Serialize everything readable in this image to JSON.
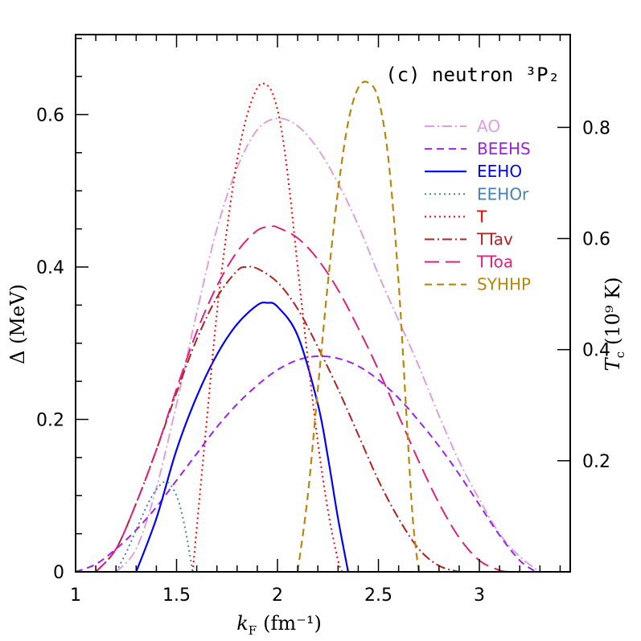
{
  "chart_data": {
    "type": "line",
    "title": "(c) neutron ³P₂",
    "xlabel": {
      "symbol": "k",
      "subscript": "F",
      "unit": "(fm⁻¹)"
    },
    "ylabel": "Δ (MeV)",
    "ylabel_right": {
      "symbol": "T",
      "subscript": "c",
      "unit": "(10⁹ K)"
    },
    "xlim": [
      1,
      3.45
    ],
    "ylim": [
      0,
      0.705
    ],
    "xticks": [
      {
        "value": 1,
        "label": "1"
      },
      {
        "value": 1.5,
        "label": "1.5"
      },
      {
        "value": 2,
        "label": "2"
      },
      {
        "value": 2.5,
        "label": "2.5"
      },
      {
        "value": 3,
        "label": "3"
      }
    ],
    "yticks": [
      {
        "value": 0,
        "label": "0"
      },
      {
        "value": 0.2,
        "label": "0.2"
      },
      {
        "value": 0.4,
        "label": "0.4"
      },
      {
        "value": 0.6,
        "label": "0.6"
      }
    ],
    "yticks_right": [
      {
        "value": 0.1458,
        "label": "0.2"
      },
      {
        "value": 0.2916,
        "label": "0.4"
      },
      {
        "value": 0.4374,
        "label": "0.6"
      },
      {
        "value": 0.5832,
        "label": "0.8"
      }
    ],
    "legend_position": "top-right",
    "series": [
      {
        "name": "AO",
        "color": "#DDA0DD",
        "dash": "dashdot",
        "width": 2,
        "x": [
          1.2,
          1.3,
          1.4,
          1.5,
          1.6,
          1.7,
          1.8,
          1.9,
          2.0,
          2.1,
          2.2,
          2.3,
          2.4,
          2.5,
          2.6,
          2.7,
          2.8,
          2.9,
          3.0,
          3.1,
          3.2,
          3.3
        ],
        "y": [
          0,
          0.03,
          0.11,
          0.22,
          0.34,
          0.45,
          0.53,
          0.58,
          0.595,
          0.585,
          0.555,
          0.51,
          0.455,
          0.39,
          0.33,
          0.27,
          0.205,
          0.145,
          0.095,
          0.05,
          0.02,
          0
        ]
      },
      {
        "name": "BEEHS",
        "color": "#A020F0",
        "dash": "dash",
        "width": 2,
        "x": [
          1.0,
          1.1,
          1.2,
          1.3,
          1.4,
          1.5,
          1.6,
          1.7,
          1.8,
          1.9,
          2.0,
          2.1,
          2.2,
          2.3,
          2.4,
          2.5,
          2.6,
          2.7,
          2.8,
          2.9,
          3.0,
          3.1,
          3.2,
          3.28
        ],
        "y": [
          0,
          0.01,
          0.03,
          0.055,
          0.085,
          0.12,
          0.155,
          0.19,
          0.22,
          0.245,
          0.265,
          0.278,
          0.283,
          0.28,
          0.27,
          0.252,
          0.228,
          0.198,
          0.165,
          0.128,
          0.088,
          0.048,
          0.015,
          0
        ]
      },
      {
        "name": "EEHO",
        "color": "#0000FF",
        "dash": "solid",
        "width": 2.2,
        "x": [
          1.3,
          1.4,
          1.5,
          1.6,
          1.7,
          1.8,
          1.9,
          1.95,
          2.0,
          2.1,
          2.2,
          2.25,
          2.3,
          2.35
        ],
        "y": [
          0,
          0.07,
          0.16,
          0.23,
          0.285,
          0.325,
          0.35,
          0.353,
          0.348,
          0.31,
          0.22,
          0.15,
          0.07,
          0
        ]
      },
      {
        "name": "EEHOr",
        "color": "#4682B4",
        "dash": "dot",
        "width": 2,
        "x": [
          1.2,
          1.25,
          1.3,
          1.35,
          1.4,
          1.45,
          1.5,
          1.54,
          1.58
        ],
        "y": [
          0,
          0.025,
          0.055,
          0.085,
          0.108,
          0.118,
          0.1,
          0.06,
          0
        ]
      },
      {
        "name": "T",
        "color": "#FF0000",
        "dash": "dot",
        "width": 2,
        "x": [
          1.58,
          1.65,
          1.7,
          1.75,
          1.8,
          1.85,
          1.9,
          1.94,
          1.98,
          2.02,
          2.06,
          2.1,
          2.15,
          2.2,
          2.25,
          2.3,
          2.32
        ],
        "y": [
          0,
          0.2,
          0.34,
          0.45,
          0.54,
          0.6,
          0.635,
          0.64,
          0.625,
          0.58,
          0.5,
          0.4,
          0.28,
          0.17,
          0.08,
          0.015,
          0
        ]
      },
      {
        "name": "TTav",
        "color": "#B22222",
        "dash": "dashdot",
        "width": 2,
        "x": [
          1.1,
          1.2,
          1.3,
          1.4,
          1.5,
          1.6,
          1.7,
          1.8,
          1.85,
          1.9,
          2.0,
          2.1,
          2.2,
          2.3,
          2.4,
          2.5,
          2.6,
          2.7,
          2.8,
          2.9
        ],
        "y": [
          0,
          0.03,
          0.09,
          0.16,
          0.235,
          0.305,
          0.36,
          0.395,
          0.4,
          0.398,
          0.38,
          0.345,
          0.295,
          0.24,
          0.18,
          0.12,
          0.07,
          0.03,
          0.008,
          0
        ]
      },
      {
        "name": "TToa",
        "color": "#E0207F",
        "dash": "longdash",
        "width": 2,
        "x": [
          1.1,
          1.2,
          1.3,
          1.4,
          1.5,
          1.6,
          1.7,
          1.8,
          1.9,
          1.97,
          2.0,
          2.1,
          2.2,
          2.3,
          2.4,
          2.5,
          2.6,
          2.7,
          2.8,
          2.9,
          3.0,
          3.1,
          3.15
        ],
        "y": [
          0,
          0.03,
          0.09,
          0.16,
          0.24,
          0.315,
          0.375,
          0.42,
          0.448,
          0.453,
          0.452,
          0.438,
          0.41,
          0.37,
          0.32,
          0.265,
          0.205,
          0.145,
          0.09,
          0.045,
          0.015,
          0.002,
          0
        ]
      },
      {
        "name": "SYHHP",
        "color": "#B8860B",
        "dash": "dash",
        "width": 2.2,
        "x": [
          2.1,
          2.15,
          2.2,
          2.25,
          2.3,
          2.35,
          2.4,
          2.45,
          2.5,
          2.55,
          2.6,
          2.64,
          2.67,
          2.7
        ],
        "y": [
          0,
          0.1,
          0.24,
          0.38,
          0.5,
          0.59,
          0.635,
          0.642,
          0.62,
          0.54,
          0.38,
          0.2,
          0.07,
          0
        ]
      }
    ]
  }
}
